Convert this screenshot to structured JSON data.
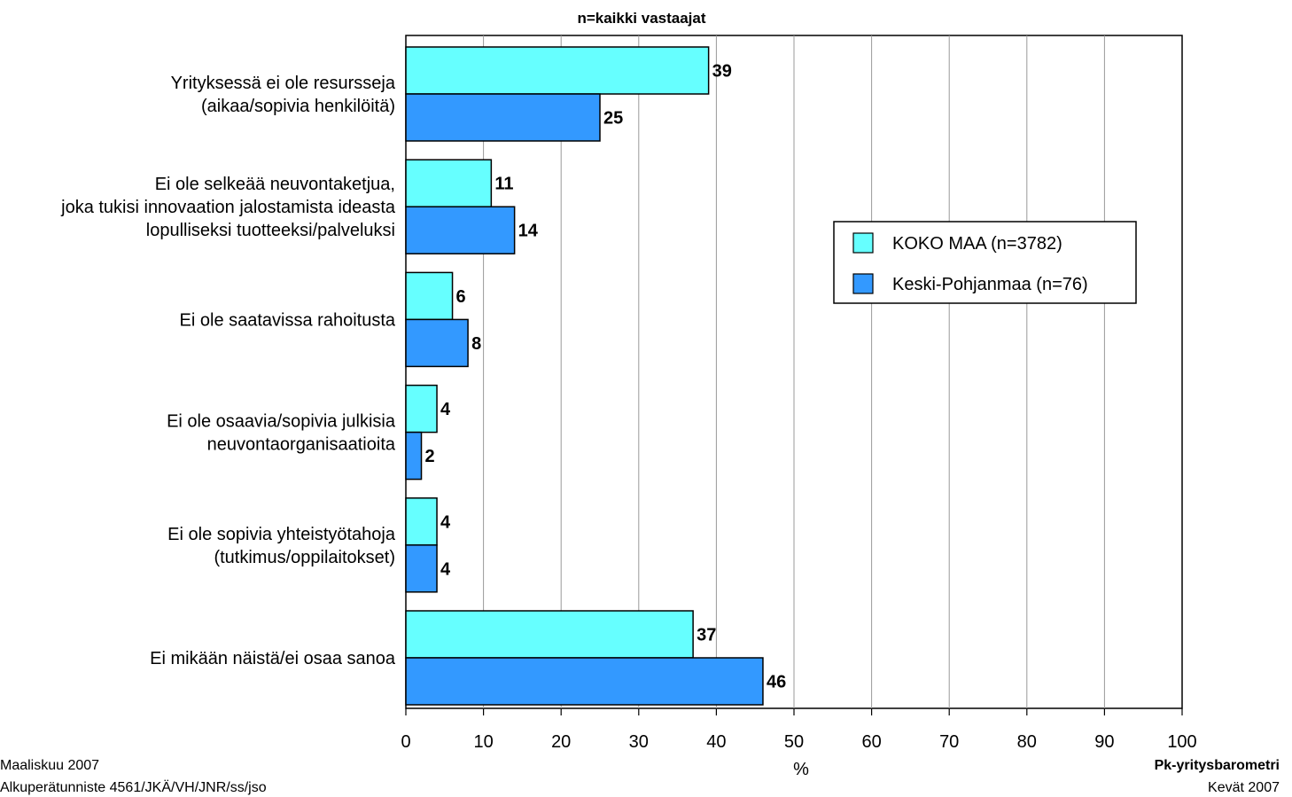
{
  "chart_data": {
    "type": "bar",
    "orientation": "horizontal",
    "title": "n=kaikki vastaajat",
    "xlabel": "%",
    "ylabel": "",
    "xlim": [
      0,
      100
    ],
    "x_ticks": [
      0,
      10,
      20,
      30,
      40,
      50,
      60,
      70,
      80,
      90,
      100
    ],
    "grid": true,
    "legend_position": "right",
    "categories": [
      [
        "Yrityksessä ei ole resursseja",
        "(aikaa/sopivia henkilöitä)"
      ],
      [
        "Ei ole selkeää neuvontaketjua,",
        "joka tukisi innovaation jalostamista ideasta",
        "lopulliseksi tuotteeksi/palveluksi"
      ],
      [
        "Ei ole saatavissa rahoitusta"
      ],
      [
        "Ei ole osaavia/sopivia julkisia",
        "neuvontaorganisaatioita"
      ],
      [
        "Ei ole sopivia yhteistyötahoja",
        "(tutkimus/oppilaitokset)"
      ],
      [
        "Ei mikään näistä/ei osaa sanoa"
      ]
    ],
    "series": [
      {
        "name": "KOKO MAA (n=3782)",
        "color": "#66ffff",
        "values": [
          39,
          11,
          6,
          4,
          4,
          37
        ]
      },
      {
        "name": "Keski-Pohjanmaa (n=76)",
        "color": "#3399ff",
        "values": [
          25,
          14,
          8,
          2,
          4,
          46
        ]
      }
    ]
  },
  "footer": {
    "left_line1": "Maaliskuu 2007",
    "left_line2": "Alkuperätunniste 4561/JKÄ/VH/JNR/ss/jso",
    "right_line1": "Pk-yritysbarometri",
    "right_line2": "Kevät 2007"
  }
}
